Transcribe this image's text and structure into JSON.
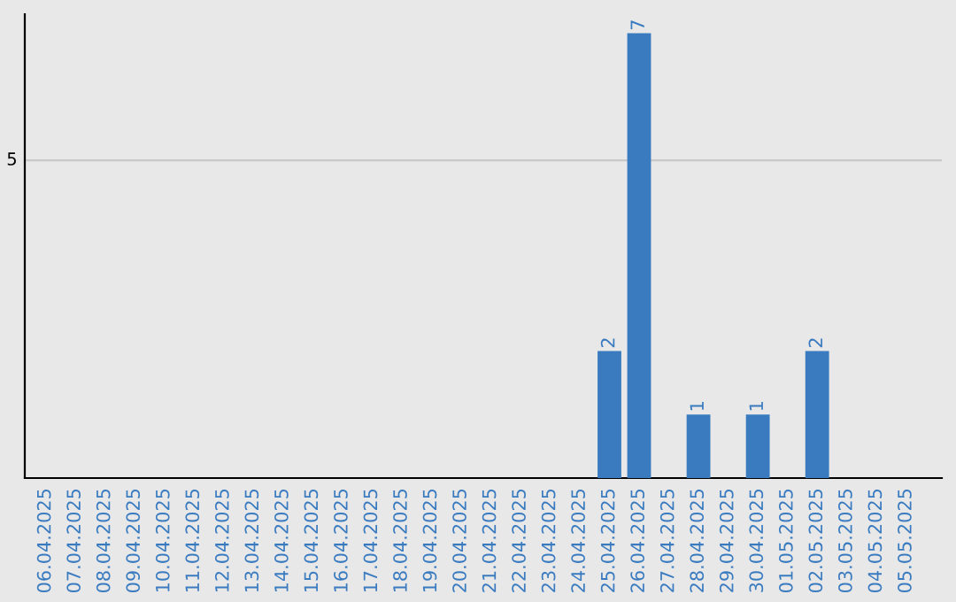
{
  "chart_data": {
    "type": "bar",
    "categories": [
      "06.04.2025",
      "07.04.2025",
      "08.04.2025",
      "09.04.2025",
      "10.04.2025",
      "11.04.2025",
      "12.04.2025",
      "13.04.2025",
      "14.04.2025",
      "15.04.2025",
      "16.04.2025",
      "17.04.2025",
      "18.04.2025",
      "19.04.2025",
      "20.04.2025",
      "21.04.2025",
      "22.04.2025",
      "23.04.2025",
      "24.04.2025",
      "25.04.2025",
      "26.04.2025",
      "27.04.2025",
      "28.04.2025",
      "29.04.2025",
      "30.04.2025",
      "01.05.2025",
      "02.05.2025",
      "03.05.2025",
      "04.05.2025",
      "05.05.2025"
    ],
    "values": [
      null,
      null,
      null,
      null,
      null,
      null,
      null,
      null,
      null,
      null,
      null,
      null,
      null,
      null,
      null,
      null,
      null,
      null,
      null,
      2,
      7,
      null,
      1,
      null,
      1,
      null,
      2,
      null,
      null,
      null
    ],
    "data_labels": true,
    "color": "#3a7bc0",
    "ref_lines": [
      {
        "axis": "y",
        "value": 5,
        "label": "5",
        "color": "#c8c8c8"
      }
    ]
  }
}
